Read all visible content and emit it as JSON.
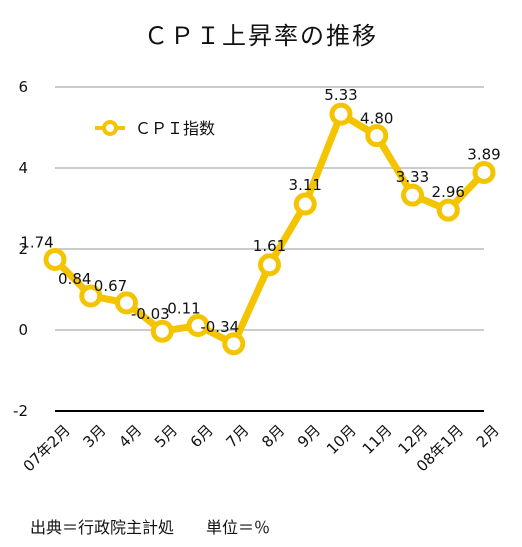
{
  "chart_data": {
    "type": "line",
    "title": "ＣＰＩ上昇率の推移",
    "categories": [
      "07年2月",
      "3月",
      "4月",
      "5月",
      "6月",
      "7月",
      "8月",
      "9月",
      "10月",
      "11月",
      "12月",
      "08年1月",
      "2月"
    ],
    "series": [
      {
        "name": "ＣＰＩ指数",
        "values": [
          1.74,
          0.84,
          0.67,
          -0.03,
          0.11,
          -0.34,
          1.61,
          3.11,
          5.33,
          4.8,
          3.33,
          2.96,
          3.89
        ],
        "labels": [
          "1.74",
          "0.84",
          "0.67",
          "-0.03",
          "0.11",
          "-0.34",
          "1.61",
          "3.11",
          "5.33",
          "4.80",
          "3.33",
          "2.96",
          "3.89"
        ],
        "color": "#F5C400"
      }
    ],
    "ylim": [
      -2,
      6
    ],
    "yticks": [
      6,
      4,
      2,
      0,
      -2
    ],
    "grid": true,
    "legend_position": "top-left",
    "gridline_color": "#bbbbbb",
    "baseline_color": "#000000"
  },
  "footer": {
    "note": "出典＝行政院主計処　　単位＝％"
  }
}
